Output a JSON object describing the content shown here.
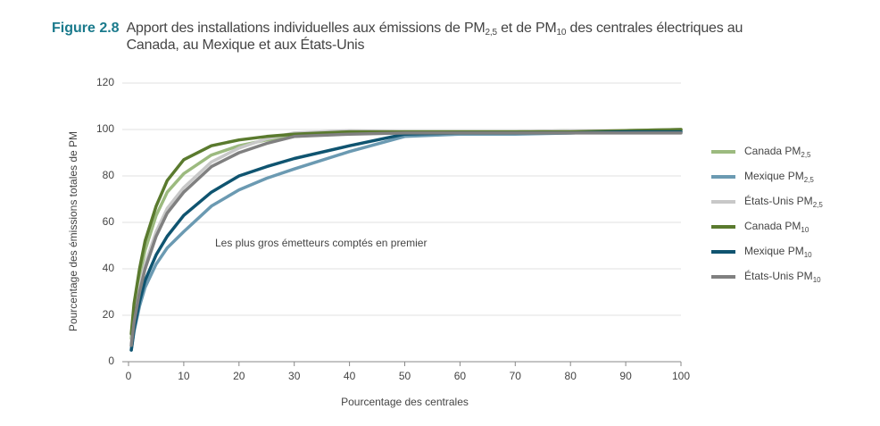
{
  "chart_data": {
    "type": "line",
    "figure_label": "Figure 2.8",
    "title": "Apport des installations individuelles aux émissions de PM2,5 et de PM10 des centrales électriques au Canada, au Mexique et aux États-Unis",
    "annotation": "Les plus gros émetteurs comptés en premier",
    "xlabel": "Pourcentage des centrales",
    "ylabel": "Pourcentage des émissions totales de PM",
    "x": [
      0.5,
      1,
      2,
      3,
      5,
      7,
      10,
      15,
      20,
      25,
      30,
      40,
      50,
      60,
      70,
      80,
      90,
      100
    ],
    "xlim": [
      0,
      100
    ],
    "xticks": [
      0,
      10,
      20,
      30,
      40,
      50,
      60,
      70,
      80,
      90,
      100
    ],
    "ylim": [
      0,
      120
    ],
    "yticks": [
      0,
      20,
      40,
      60,
      80,
      100,
      120
    ],
    "grid": true,
    "legend": "right",
    "series": [
      {
        "name": "Canada PM2,5",
        "color": "#9cba7f",
        "values": [
          10,
          22,
          37,
          48,
          63,
          73,
          81,
          89,
          93,
          95.5,
          97,
          98.5,
          99,
          99,
          99,
          99.5,
          99.5,
          100
        ]
      },
      {
        "name": "Mexique PM2,5",
        "color": "#6b9ab2",
        "values": [
          5,
          13,
          24,
          32,
          42,
          49,
          56,
          67,
          74,
          79,
          83,
          90.5,
          97,
          98,
          98,
          98.5,
          99,
          99.5
        ]
      },
      {
        "name": "États-Unis PM2,5",
        "color": "#c8c8c8",
        "values": [
          8,
          18,
          32,
          42,
          56,
          66,
          75,
          86,
          92,
          96,
          98.5,
          99.5,
          99,
          99,
          99,
          99.5,
          99.5,
          100
        ]
      },
      {
        "name": "Canada PM10",
        "color": "#5a7a2e",
        "values": [
          12,
          25,
          40,
          52,
          67,
          78,
          87,
          93,
          95.5,
          97,
          98,
          99,
          99,
          99,
          99,
          99,
          99.5,
          100
        ]
      },
      {
        "name": "Mexique PM10",
        "color": "#0f5470",
        "values": [
          5,
          14,
          26,
          35,
          46,
          54,
          63,
          73,
          80,
          84,
          87.5,
          93,
          98,
          98.5,
          98.5,
          98.5,
          99,
          99
        ]
      },
      {
        "name": "États-Unis PM10",
        "color": "#808080",
        "values": [
          7,
          17,
          30,
          40,
          54,
          64,
          73,
          84,
          90,
          94,
          97,
          98,
          98.5,
          98.5,
          98.5,
          98.5,
          98.5,
          98.5
        ]
      }
    ]
  }
}
